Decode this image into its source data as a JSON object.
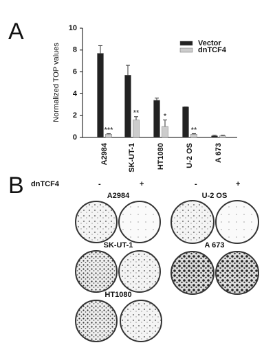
{
  "panel_a": {
    "label": "A"
  },
  "chart_data": {
    "type": "bar",
    "y_label": "Normalized TOP values",
    "categories": [
      "A2984",
      "SK-UT-1",
      "HT1080",
      "U-2 OS",
      "A 673"
    ],
    "series": [
      {
        "name": "Vector",
        "color": "#222222",
        "values": [
          7.7,
          5.7,
          3.4,
          2.8,
          0.15
        ],
        "errors": [
          0.7,
          0.9,
          0.2,
          0,
          0.05
        ]
      },
      {
        "name": "dnTCF4",
        "color": "#cccccc",
        "values": [
          0.3,
          1.6,
          1.0,
          0.3,
          0.15
        ],
        "errors": [
          0.05,
          0.3,
          0.6,
          0.05,
          0.05
        ]
      }
    ],
    "significance": [
      "***",
      "**",
      "*",
      "**",
      null
    ],
    "ylim": [
      0,
      10
    ],
    "yticks": [
      0,
      2,
      4,
      6,
      8,
      10
    ],
    "legend": "top-right"
  },
  "panel_b": {
    "label": "B",
    "treatment": "dnTCF4",
    "minus": "-",
    "plus": "+",
    "cell_lines": [
      "A2984",
      "U-2 OS",
      "SK-UT-1",
      "A 673",
      "HT1080"
    ]
  }
}
